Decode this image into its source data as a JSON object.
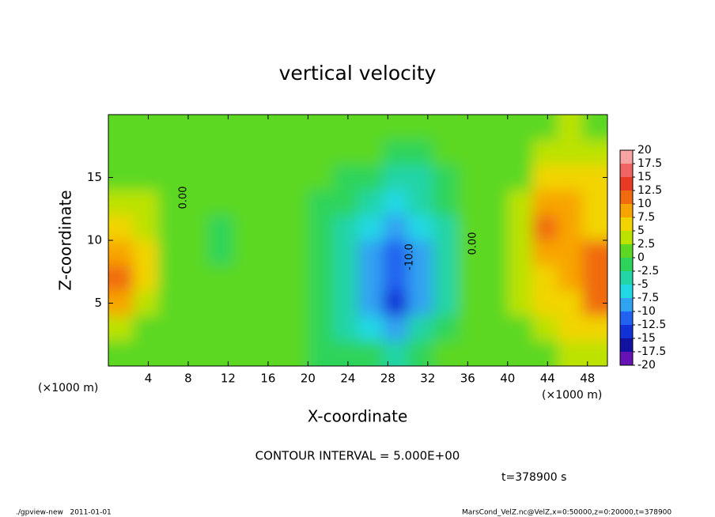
{
  "chart_data": {
    "type": "heatmap",
    "title": "vertical velocity",
    "x_label": "X-coordinate",
    "y_label": "Z-coordinate",
    "x_unit": "(×1000 m)",
    "x2_unit": "(×1000 m)",
    "xlim": [
      0,
      50
    ],
    "ylim": [
      0,
      20
    ],
    "xticks": [
      4,
      8,
      12,
      16,
      20,
      24,
      28,
      32,
      36,
      40,
      44,
      48
    ],
    "yticks": [
      5,
      10,
      15
    ],
    "x": [
      1.25,
      3.75,
      6.25,
      8.75,
      11.25,
      13.75,
      16.25,
      18.75,
      21.25,
      23.75,
      26.25,
      28.75,
      31.25,
      33.75,
      36.25,
      38.75,
      41.25,
      43.75,
      46.25,
      48.75
    ],
    "y": [
      19,
      17,
      15,
      13,
      11,
      9,
      7,
      5,
      3,
      1
    ],
    "values": [
      [
        2,
        2,
        1,
        0,
        0,
        0,
        0,
        0,
        0,
        0,
        0,
        0,
        0,
        0,
        0,
        0,
        1,
        2,
        3,
        2
      ],
      [
        2,
        1,
        1,
        0,
        0,
        0,
        0,
        0,
        0,
        0,
        0,
        -1,
        -1,
        0,
        0,
        0,
        1,
        3,
        4,
        3
      ],
      [
        2,
        2,
        1,
        0,
        0,
        0,
        0,
        0,
        0,
        -1,
        -2,
        -3,
        -3,
        -1,
        0,
        0,
        2,
        5,
        6,
        5
      ],
      [
        3,
        3,
        1,
        0,
        0,
        0,
        0,
        0,
        -1,
        -2,
        -4,
        -6,
        -5,
        -2,
        0,
        1,
        3,
        9,
        8,
        6
      ],
      [
        5,
        4,
        1,
        0,
        -1,
        0,
        0,
        0,
        -1,
        -3,
        -6,
        -8,
        -7,
        -3,
        0,
        1,
        4,
        10,
        9,
        7
      ],
      [
        8,
        5,
        1,
        0,
        -1,
        0,
        0,
        1,
        -1,
        -4,
        -8,
        -11,
        -9,
        -4,
        0,
        1,
        4,
        8,
        9,
        10
      ],
      [
        10,
        5,
        1,
        0,
        0,
        0,
        0,
        1,
        -1,
        -5,
        -9,
        -12,
        -9,
        -4,
        0,
        1,
        4,
        7,
        8,
        12
      ],
      [
        9,
        4,
        1,
        0,
        0,
        0,
        0,
        0,
        -2,
        -5,
        -8,
        -14,
        -8,
        -3,
        0,
        0,
        3,
        6,
        7,
        11
      ],
      [
        4,
        2,
        1,
        0,
        0,
        0,
        0,
        0,
        -2,
        -4,
        -6,
        -9,
        -5,
        -1,
        1,
        0,
        2,
        4,
        5,
        6
      ],
      [
        2,
        1,
        0,
        0,
        0,
        0,
        0,
        0,
        -1,
        -1,
        -2,
        -4,
        -2,
        0,
        1,
        0,
        1,
        2,
        3,
        3
      ]
    ],
    "colorbar": {
      "levels": [
        20,
        17.5,
        15,
        12.5,
        10,
        7.5,
        5,
        2.5,
        0,
        -2.5,
        -5,
        -7.5,
        -10,
        -12.5,
        -15,
        -17.5,
        -20
      ],
      "colors": [
        "#f7a3a3",
        "#f06464",
        "#e83a22",
        "#f06a10",
        "#f8a400",
        "#f2d400",
        "#bce200",
        "#5cd824",
        "#2ed45a",
        "#22d4a6",
        "#22d8e4",
        "#30a2f2",
        "#2262f0",
        "#1232d8",
        "#1212a0",
        "#6612b4"
      ]
    },
    "annotations": [
      "0.00",
      "0.00",
      "-10.0"
    ],
    "contour_interval": "CONTOUR INTERVAL = 5.000E+00",
    "time": "t=378900 s",
    "footer_left": "./gpview-new   2011-01-01",
    "footer_right": "MarsCond_VelZ.nc@VelZ,x=0:50000,z=0:20000,t=378900"
  }
}
